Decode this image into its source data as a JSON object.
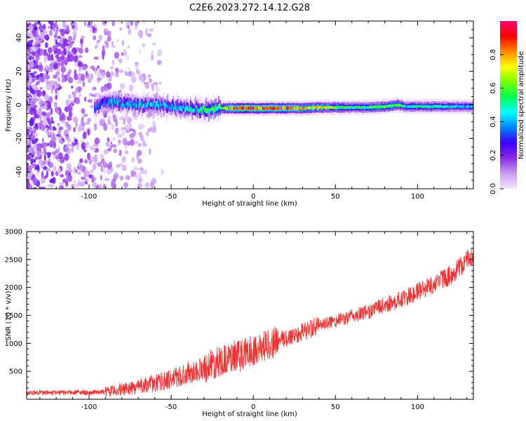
{
  "title": "C2E6.2023.272.14.12.G28",
  "chart_data": [
    {
      "type": "heatmap",
      "title": "C2E6.2023.272.14.12.G28",
      "xlabel": "Height of straight line (km)",
      "ylabel": "Frequency (Hz)",
      "xlim": [
        -138,
        134
      ],
      "ylim": [
        -50,
        50
      ],
      "x_ticks": [
        -100,
        -50,
        0,
        50,
        100
      ],
      "y_ticks": [
        -40,
        -20,
        0,
        20,
        40
      ],
      "grid": false,
      "colorbar": {
        "label": "Normalized spectral amplitude",
        "range": [
          0,
          1
        ],
        "ticks": [
          "0.0",
          "0.2",
          "0.4",
          "0.6",
          "0.8"
        ],
        "colors": [
          "#f2e6fb",
          "#c89cf0",
          "#8a2be2",
          "#3b00ff",
          "#0080ff",
          "#00ffff",
          "#00ff55",
          "#77ff00",
          "#ffff00",
          "#ff8800",
          "#ff0000",
          "#ff0077"
        ]
      },
      "ridge": {
        "x": [
          -97,
          -90,
          -80,
          -70,
          -60,
          -50,
          -40,
          -30,
          -20,
          -10,
          0,
          10,
          20,
          30,
          40,
          50,
          60,
          70,
          80,
          88,
          92,
          100,
          110,
          120,
          134
        ],
        "freq": [
          -2,
          2,
          1,
          0,
          0,
          -1,
          -2,
          -3,
          -2,
          -2,
          -2,
          -2,
          -2,
          -2,
          -1.5,
          -1.5,
          -1.5,
          -1.5,
          -1,
          0,
          -1,
          -1,
          -1,
          -1,
          -1
        ],
        "amplitude": [
          0.3,
          0.35,
          0.4,
          0.4,
          0.4,
          0.38,
          0.45,
          0.5,
          0.6,
          0.9,
          0.9,
          0.85,
          0.85,
          0.75,
          0.7,
          0.6,
          0.5,
          0.55,
          0.6,
          0.6,
          0.45,
          0.5,
          0.5,
          0.45,
          0.4
        ]
      },
      "noise_region": {
        "x_start": -138,
        "x_end": -55,
        "amplitude": 0.15
      }
    },
    {
      "type": "line",
      "xlabel": "Height of straight line (km)",
      "ylabel": "SNR (10 * v/v)",
      "xlim": [
        -138,
        134
      ],
      "ylim": [
        0,
        3000
      ],
      "x_ticks": [
        -100,
        -50,
        0,
        50,
        100
      ],
      "y_ticks": [
        500,
        1000,
        1500,
        2000,
        2500,
        3000
      ],
      "grid": false,
      "color": "#ee3333",
      "series": [
        {
          "x": [
            -138,
            -120,
            -100,
            -90,
            -80,
            -70,
            -60,
            -50,
            -40,
            -30,
            -20,
            -10,
            0,
            10,
            20,
            30,
            40,
            50,
            60,
            70,
            80,
            90,
            100,
            110,
            120,
            130,
            134
          ],
          "y": [
            120,
            120,
            120,
            130,
            170,
            230,
            290,
            360,
            470,
            560,
            690,
            760,
            880,
            990,
            1090,
            1210,
            1320,
            1400,
            1480,
            1570,
            1690,
            1780,
            1920,
            2070,
            2220,
            2480,
            2600
          ]
        }
      ]
    }
  ]
}
